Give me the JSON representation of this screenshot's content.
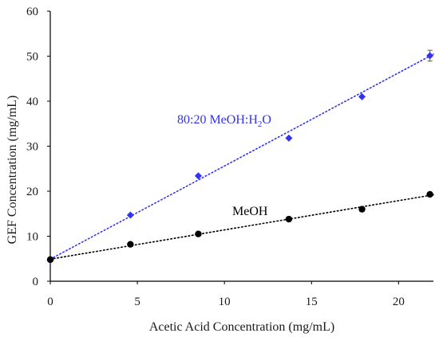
{
  "chart_data": {
    "type": "scatter",
    "xlabel": "Acetic Acid Concentration (mg/mL)",
    "ylabel": "GEF Concentration (mg/mL)",
    "xlim": [
      0,
      22
    ],
    "ylim": [
      0,
      60
    ],
    "xticks": [
      0,
      5,
      10,
      15,
      20
    ],
    "yticks": [
      0,
      10,
      20,
      30,
      40,
      50,
      60
    ],
    "grid": false,
    "series": [
      {
        "name": "80:20 MeOH:H2O",
        "label_main": "80:20 MeOH:H",
        "label_sub": "2",
        "label_tail": "O",
        "color": "#3333ee",
        "marker": "diamond",
        "x": [
          0,
          4.6,
          8.5,
          13.7,
          17.9,
          21.8
        ],
        "y": [
          4.7,
          14.7,
          23.4,
          31.8,
          41.0,
          50.1
        ],
        "error_last": 1.2,
        "trendline": {
          "intercept": 4.9,
          "slope": 2.07
        }
      },
      {
        "name": "MeOH",
        "label_main": "MeOH",
        "color": "#000000",
        "marker": "circle",
        "x": [
          0,
          4.6,
          8.5,
          13.7,
          17.9,
          21.8
        ],
        "y": [
          4.8,
          8.2,
          10.5,
          13.8,
          16.0,
          19.3
        ],
        "trendline": {
          "intercept": 4.9,
          "slope": 0.65
        }
      }
    ]
  }
}
